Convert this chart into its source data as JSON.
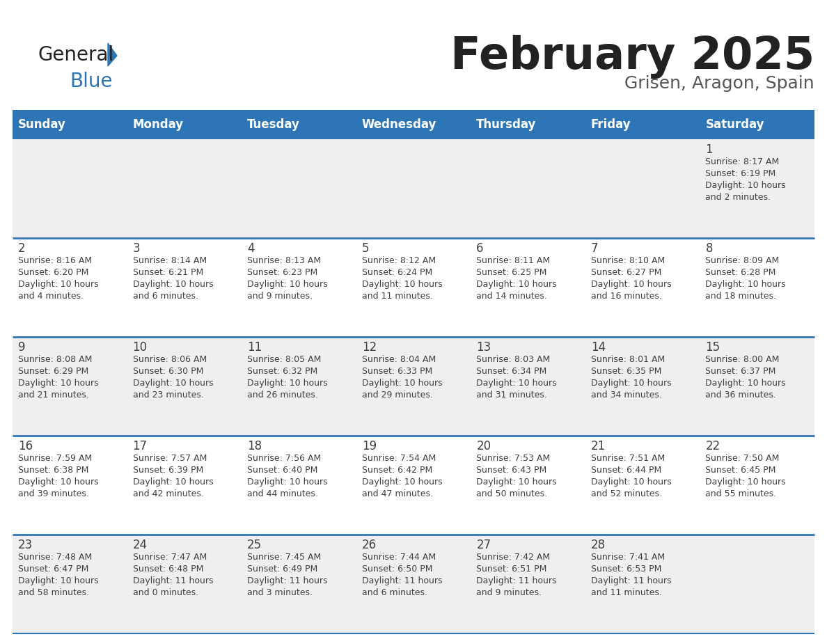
{
  "title": "February 2025",
  "subtitle": "Grisen, Aragon, Spain",
  "header_color": "#2E75B6",
  "header_text_color": "#FFFFFF",
  "day_names": [
    "Sunday",
    "Monday",
    "Tuesday",
    "Wednesday",
    "Thursday",
    "Friday",
    "Saturday"
  ],
  "bg_color": "#FFFFFF",
  "cell_bg_even": "#EFEFEF",
  "cell_bg_odd": "#FFFFFF",
  "border_color": "#2E75B6",
  "text_color": "#404040",
  "title_color": "#222222",
  "subtitle_color": "#555555",
  "logo_general_color": "#222222",
  "logo_blue_color": "#2E75B6",
  "logo_triangle_color": "#2E75B6",
  "days": [
    {
      "day": 1,
      "col": 6,
      "row": 0,
      "sunrise": "8:17 AM",
      "sunset": "6:19 PM",
      "daylight_h": "10 hours",
      "daylight_m": "and 2 minutes."
    },
    {
      "day": 2,
      "col": 0,
      "row": 1,
      "sunrise": "8:16 AM",
      "sunset": "6:20 PM",
      "daylight_h": "10 hours",
      "daylight_m": "and 4 minutes."
    },
    {
      "day": 3,
      "col": 1,
      "row": 1,
      "sunrise": "8:14 AM",
      "sunset": "6:21 PM",
      "daylight_h": "10 hours",
      "daylight_m": "and 6 minutes."
    },
    {
      "day": 4,
      "col": 2,
      "row": 1,
      "sunrise": "8:13 AM",
      "sunset": "6:23 PM",
      "daylight_h": "10 hours",
      "daylight_m": "and 9 minutes."
    },
    {
      "day": 5,
      "col": 3,
      "row": 1,
      "sunrise": "8:12 AM",
      "sunset": "6:24 PM",
      "daylight_h": "10 hours",
      "daylight_m": "and 11 minutes."
    },
    {
      "day": 6,
      "col": 4,
      "row": 1,
      "sunrise": "8:11 AM",
      "sunset": "6:25 PM",
      "daylight_h": "10 hours",
      "daylight_m": "and 14 minutes."
    },
    {
      "day": 7,
      "col": 5,
      "row": 1,
      "sunrise": "8:10 AM",
      "sunset": "6:27 PM",
      "daylight_h": "10 hours",
      "daylight_m": "and 16 minutes."
    },
    {
      "day": 8,
      "col": 6,
      "row": 1,
      "sunrise": "8:09 AM",
      "sunset": "6:28 PM",
      "daylight_h": "10 hours",
      "daylight_m": "and 18 minutes."
    },
    {
      "day": 9,
      "col": 0,
      "row": 2,
      "sunrise": "8:08 AM",
      "sunset": "6:29 PM",
      "daylight_h": "10 hours",
      "daylight_m": "and 21 minutes."
    },
    {
      "day": 10,
      "col": 1,
      "row": 2,
      "sunrise": "8:06 AM",
      "sunset": "6:30 PM",
      "daylight_h": "10 hours",
      "daylight_m": "and 23 minutes."
    },
    {
      "day": 11,
      "col": 2,
      "row": 2,
      "sunrise": "8:05 AM",
      "sunset": "6:32 PM",
      "daylight_h": "10 hours",
      "daylight_m": "and 26 minutes."
    },
    {
      "day": 12,
      "col": 3,
      "row": 2,
      "sunrise": "8:04 AM",
      "sunset": "6:33 PM",
      "daylight_h": "10 hours",
      "daylight_m": "and 29 minutes."
    },
    {
      "day": 13,
      "col": 4,
      "row": 2,
      "sunrise": "8:03 AM",
      "sunset": "6:34 PM",
      "daylight_h": "10 hours",
      "daylight_m": "and 31 minutes."
    },
    {
      "day": 14,
      "col": 5,
      "row": 2,
      "sunrise": "8:01 AM",
      "sunset": "6:35 PM",
      "daylight_h": "10 hours",
      "daylight_m": "and 34 minutes."
    },
    {
      "day": 15,
      "col": 6,
      "row": 2,
      "sunrise": "8:00 AM",
      "sunset": "6:37 PM",
      "daylight_h": "10 hours",
      "daylight_m": "and 36 minutes."
    },
    {
      "day": 16,
      "col": 0,
      "row": 3,
      "sunrise": "7:59 AM",
      "sunset": "6:38 PM",
      "daylight_h": "10 hours",
      "daylight_m": "and 39 minutes."
    },
    {
      "day": 17,
      "col": 1,
      "row": 3,
      "sunrise": "7:57 AM",
      "sunset": "6:39 PM",
      "daylight_h": "10 hours",
      "daylight_m": "and 42 minutes."
    },
    {
      "day": 18,
      "col": 2,
      "row": 3,
      "sunrise": "7:56 AM",
      "sunset": "6:40 PM",
      "daylight_h": "10 hours",
      "daylight_m": "and 44 minutes."
    },
    {
      "day": 19,
      "col": 3,
      "row": 3,
      "sunrise": "7:54 AM",
      "sunset": "6:42 PM",
      "daylight_h": "10 hours",
      "daylight_m": "and 47 minutes."
    },
    {
      "day": 20,
      "col": 4,
      "row": 3,
      "sunrise": "7:53 AM",
      "sunset": "6:43 PM",
      "daylight_h": "10 hours",
      "daylight_m": "and 50 minutes."
    },
    {
      "day": 21,
      "col": 5,
      "row": 3,
      "sunrise": "7:51 AM",
      "sunset": "6:44 PM",
      "daylight_h": "10 hours",
      "daylight_m": "and 52 minutes."
    },
    {
      "day": 22,
      "col": 6,
      "row": 3,
      "sunrise": "7:50 AM",
      "sunset": "6:45 PM",
      "daylight_h": "10 hours",
      "daylight_m": "and 55 minutes."
    },
    {
      "day": 23,
      "col": 0,
      "row": 4,
      "sunrise": "7:48 AM",
      "sunset": "6:47 PM",
      "daylight_h": "10 hours",
      "daylight_m": "and 58 minutes."
    },
    {
      "day": 24,
      "col": 1,
      "row": 4,
      "sunrise": "7:47 AM",
      "sunset": "6:48 PM",
      "daylight_h": "11 hours",
      "daylight_m": "and 0 minutes."
    },
    {
      "day": 25,
      "col": 2,
      "row": 4,
      "sunrise": "7:45 AM",
      "sunset": "6:49 PM",
      "daylight_h": "11 hours",
      "daylight_m": "and 3 minutes."
    },
    {
      "day": 26,
      "col": 3,
      "row": 4,
      "sunrise": "7:44 AM",
      "sunset": "6:50 PM",
      "daylight_h": "11 hours",
      "daylight_m": "and 6 minutes."
    },
    {
      "day": 27,
      "col": 4,
      "row": 4,
      "sunrise": "7:42 AM",
      "sunset": "6:51 PM",
      "daylight_h": "11 hours",
      "daylight_m": "and 9 minutes."
    },
    {
      "day": 28,
      "col": 5,
      "row": 4,
      "sunrise": "7:41 AM",
      "sunset": "6:53 PM",
      "daylight_h": "11 hours",
      "daylight_m": "and 11 minutes."
    }
  ]
}
